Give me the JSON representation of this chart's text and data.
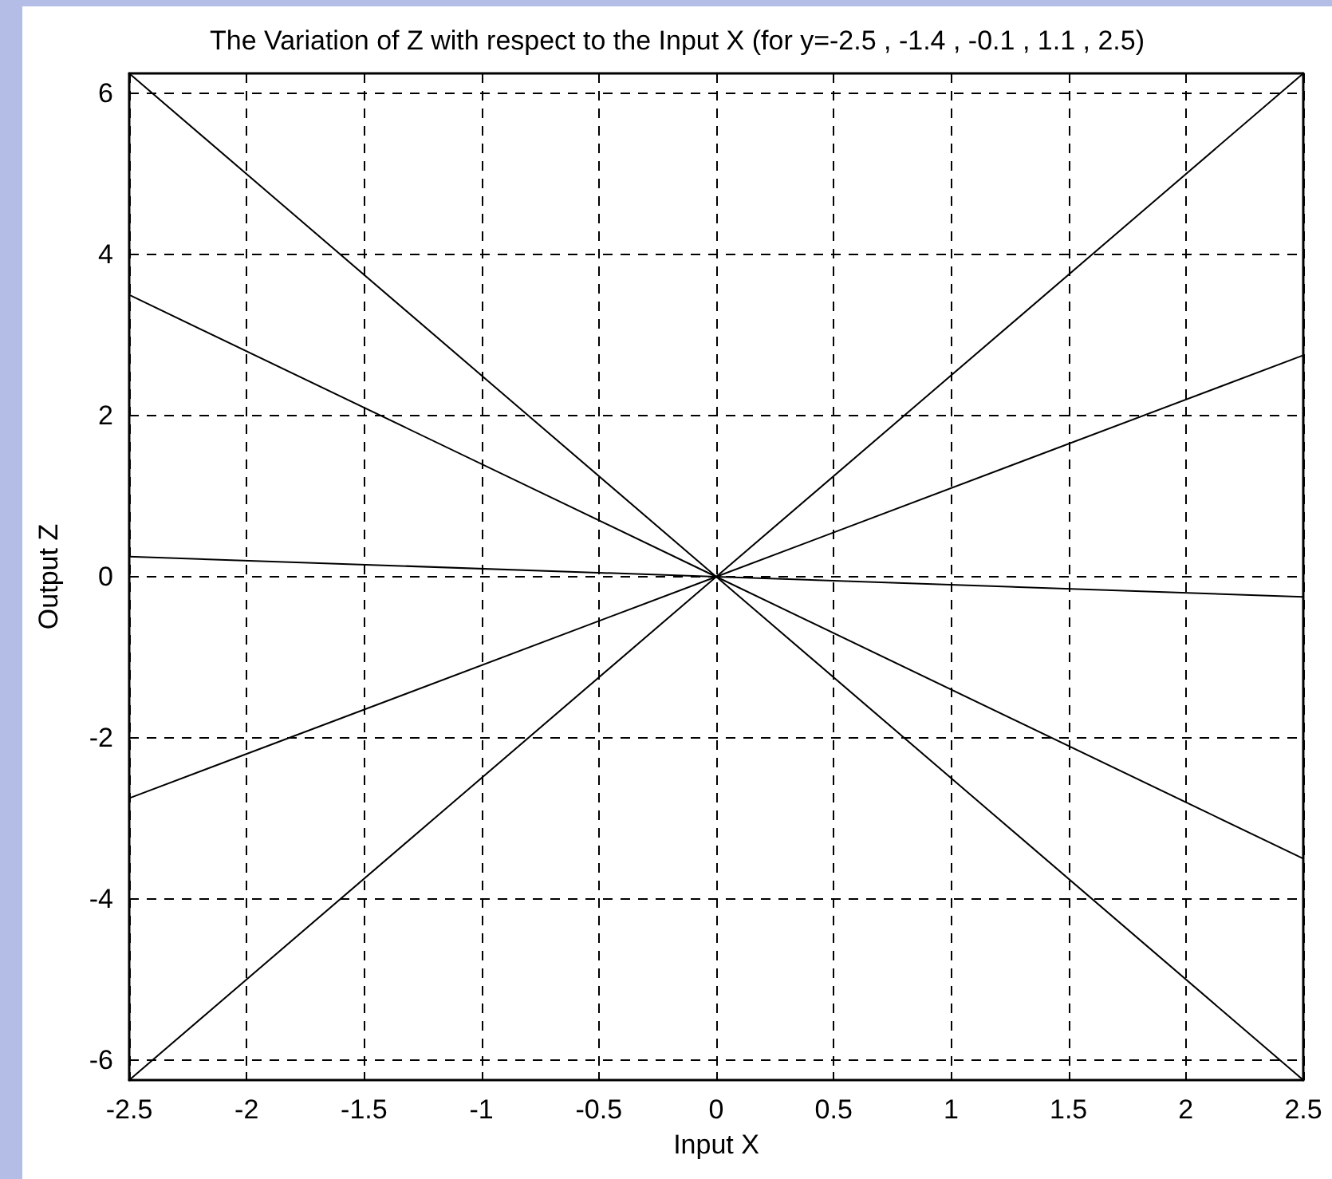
{
  "chart_data": {
    "type": "line",
    "title": "The Variation of Z with respect to the Input X (for y=-2.5 , -1.4 , -0.1 , 1.1 , 2.5)",
    "xlabel": "Input X",
    "ylabel": "Output Z",
    "x": [
      -2.5,
      0,
      2.5
    ],
    "series": [
      {
        "color": "#000000",
        "values": [
          6.25,
          0,
          -6.25
        ]
      },
      {
        "color": "#000000",
        "values": [
          3.5,
          0,
          -3.5
        ]
      },
      {
        "color": "#000000",
        "values": [
          0.25,
          0,
          -0.25
        ]
      },
      {
        "color": "#000000",
        "values": [
          -2.75,
          0,
          2.75
        ]
      },
      {
        "color": "#000000",
        "values": [
          -6.25,
          0,
          6.25
        ]
      }
    ],
    "xlim": [
      -2.5,
      2.5
    ],
    "xticks": [
      -2.5,
      -2,
      -1.5,
      -1,
      -0.5,
      0,
      0.5,
      1,
      1.5,
      2,
      2.5
    ],
    "ylim": [
      -6.25,
      6.25
    ],
    "yticks": [
      -6,
      -4,
      -2,
      0,
      2,
      4,
      6
    ],
    "grid": true,
    "marker": "none",
    "line_style": "solid"
  }
}
